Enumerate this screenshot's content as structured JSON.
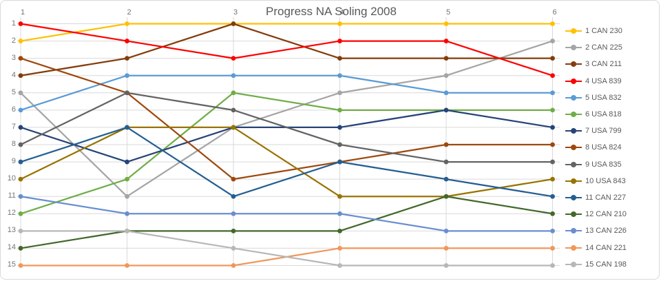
{
  "window": {
    "background": "#FFFFFF",
    "border_color": "#D9D9D9"
  },
  "chart_data": {
    "type": "line",
    "title": "Progress NA Soling 2008",
    "x_axis_position": "top",
    "x_tick_labels": [
      "1",
      "2",
      "3",
      "4",
      "5",
      "6"
    ],
    "y_tick_labels": [
      "1",
      "2",
      "3",
      "4",
      "5",
      "6",
      "7",
      "8",
      "9",
      "10",
      "11",
      "12",
      "13",
      "14",
      "15"
    ],
    "y_axis_inverted": true,
    "ylim": [
      1,
      15
    ],
    "grid": true,
    "gridline_color": "#D9D9D9",
    "title_color": "#595959",
    "tick_color": "#757575",
    "legend_position": "right",
    "series": [
      {
        "name": "1 CAN 230",
        "color": "#FFC000",
        "values": [
          2,
          1,
          1,
          1,
          1,
          1
        ]
      },
      {
        "name": "2 CAN 225",
        "color": "#A5A5A5",
        "values": [
          5,
          11,
          7,
          5,
          4,
          2
        ]
      },
      {
        "name": "3 CAN 211",
        "color": "#843C0C",
        "values": [
          4,
          3,
          1,
          3,
          3,
          3
        ]
      },
      {
        "name": "4 USA 839",
        "color": "#FF0000",
        "values": [
          1,
          2,
          3,
          2,
          2,
          4
        ]
      },
      {
        "name": "5 USA 832",
        "color": "#5B9BD5",
        "values": [
          6,
          4,
          4,
          4,
          5,
          5
        ]
      },
      {
        "name": "6 USA 818",
        "color": "#70AD47",
        "values": [
          12,
          10,
          5,
          6,
          6,
          6
        ]
      },
      {
        "name": "7 USA 799",
        "color": "#264478",
        "values": [
          7,
          9,
          7,
          7,
          6,
          7
        ]
      },
      {
        "name": "8 USA 824",
        "color": "#9E480E",
        "values": [
          3,
          5,
          10,
          9,
          8,
          8
        ]
      },
      {
        "name": "9 USA 835",
        "color": "#636363",
        "values": [
          8,
          5,
          6,
          8,
          9,
          9
        ]
      },
      {
        "name": "10 USA 843",
        "color": "#997300",
        "values": [
          10,
          7,
          7,
          11,
          11,
          10
        ]
      },
      {
        "name": "11 CAN 227",
        "color": "#255E91",
        "values": [
          9,
          7,
          11,
          9,
          10,
          11
        ]
      },
      {
        "name": "12 CAN 210",
        "color": "#43682B",
        "values": [
          14,
          13,
          13,
          13,
          11,
          12
        ]
      },
      {
        "name": "13 CAN 226",
        "color": "#698ED0",
        "values": [
          11,
          12,
          12,
          12,
          13,
          13
        ]
      },
      {
        "name": "14 CAN 221",
        "color": "#F1975A",
        "values": [
          15,
          15,
          15,
          14,
          14,
          14
        ]
      },
      {
        "name": "15 CAN 198",
        "color": "#B7B7B7",
        "values": [
          13,
          13,
          14,
          15,
          15,
          15
        ]
      }
    ]
  }
}
